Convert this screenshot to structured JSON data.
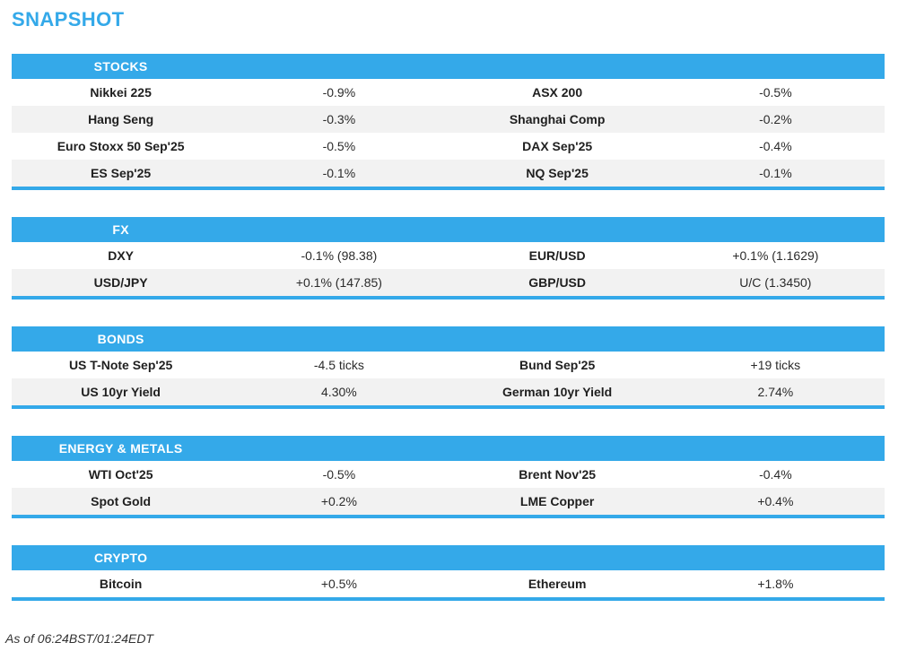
{
  "page": {
    "title": "SNAPSHOT",
    "footer": "As of 06:24BST/01:24EDT"
  },
  "colors": {
    "accent_blue": "#34A9E9",
    "row_alt_gray": "#F2F2F2",
    "header_text": "#FFFFFF",
    "body_text": "#222222"
  },
  "sections": [
    {
      "header": "STOCKS",
      "rows": [
        {
          "l1": "Nikkei 225",
          "v1": "-0.9%",
          "l2": "ASX 200",
          "v2": "-0.5%"
        },
        {
          "l1": "Hang Seng",
          "v1": "-0.3%",
          "l2": "Shanghai Comp",
          "v2": "-0.2%"
        },
        {
          "l1": "Euro Stoxx 50 Sep'25",
          "v1": "-0.5%",
          "l2": "DAX Sep'25",
          "v2": "-0.4%"
        },
        {
          "l1": "ES Sep'25",
          "v1": "-0.1%",
          "l2": "NQ Sep'25",
          "v2": "-0.1%"
        }
      ]
    },
    {
      "header": "FX",
      "rows": [
        {
          "l1": "DXY",
          "v1": "-0.1% (98.38)",
          "l2": "EUR/USD",
          "v2": "+0.1% (1.1629)"
        },
        {
          "l1": "USD/JPY",
          "v1": "+0.1% (147.85)",
          "l2": "GBP/USD",
          "v2": "U/C (1.3450)"
        }
      ]
    },
    {
      "header": "BONDS",
      "rows": [
        {
          "l1": "US T-Note Sep'25",
          "v1": "-4.5 ticks",
          "l2": "Bund Sep'25",
          "v2": "+19 ticks"
        },
        {
          "l1": "US 10yr Yield",
          "v1": "4.30%",
          "l2": "German 10yr Yield",
          "v2": "2.74%"
        }
      ]
    },
    {
      "header": "ENERGY & METALS",
      "rows": [
        {
          "l1": "WTI Oct'25",
          "v1": "-0.5%",
          "l2": "Brent Nov'25",
          "v2": "-0.4%"
        },
        {
          "l1": "Spot Gold",
          "v1": "+0.2%",
          "l2": "LME Copper",
          "v2": "+0.4%"
        }
      ]
    },
    {
      "header": "CRYPTO",
      "rows": [
        {
          "l1": "Bitcoin",
          "v1": "+0.5%",
          "l2": "Ethereum",
          "v2": "+1.8%"
        }
      ]
    }
  ]
}
